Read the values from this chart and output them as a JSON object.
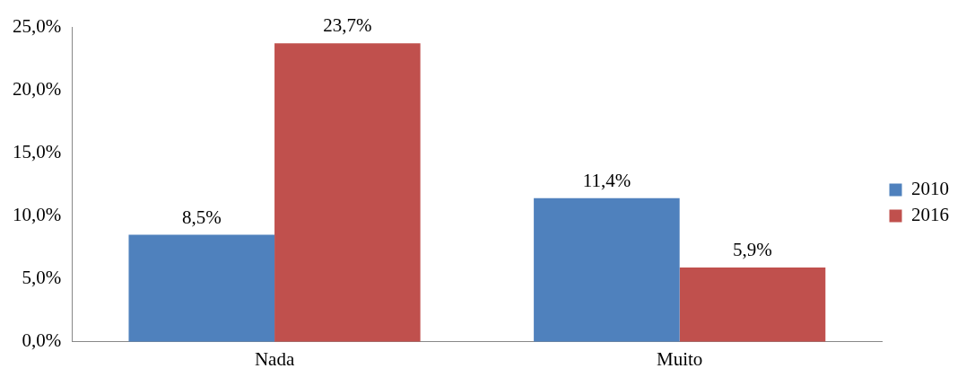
{
  "chart_data": {
    "type": "bar",
    "categories": [
      "Nada",
      "Muito"
    ],
    "series": [
      {
        "name": "2010",
        "color": "#4f81bd",
        "values": [
          8.5,
          11.4
        ],
        "value_labels": [
          "8,5%",
          "11,4%"
        ]
      },
      {
        "name": "2016",
        "color": "#c0504d",
        "values": [
          23.7,
          5.9
        ],
        "value_labels": [
          "23,7%",
          "5,9%"
        ]
      }
    ],
    "ylim": [
      0,
      25
    ],
    "yticks": [
      {
        "value": 0,
        "label": "0,0%"
      },
      {
        "value": 5,
        "label": "5,0%"
      },
      {
        "value": 10,
        "label": "10,0%"
      },
      {
        "value": 15,
        "label": "15,0%"
      },
      {
        "value": 20,
        "label": "20,0%"
      },
      {
        "value": 25,
        "label": "25,0%"
      }
    ],
    "grid": false,
    "legend": "right"
  }
}
